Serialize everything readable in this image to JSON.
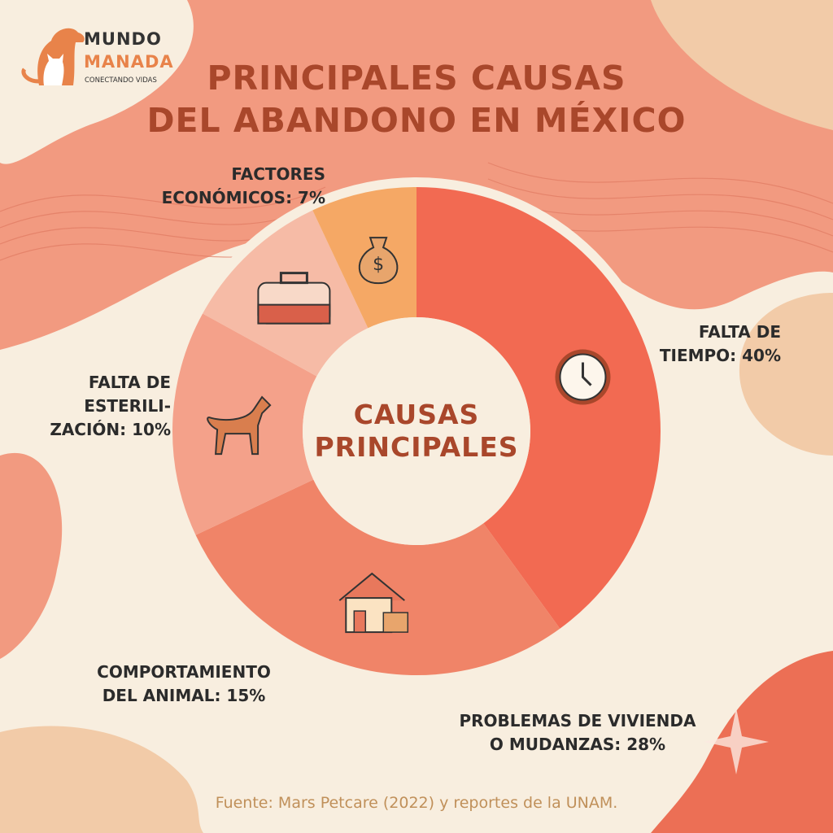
{
  "logo": {
    "line1": "MUNDO",
    "line2": "MANADA",
    "tagline": "CONECTANDO VIDAS"
  },
  "title_line1": "PRINCIPALES CAUSAS",
  "title_line2": "DEL ABANDONO EN MÉXICO",
  "center_line1": "CAUSAS",
  "center_line2": "PRINCIPALES",
  "source": "Fuente: Mars Petcare (2022) y reportes de la UNAM.",
  "chart_data": {
    "type": "pie",
    "variant": "donut",
    "title": "PRINCIPALES CAUSAS DEL ABANDONO EN MÉXICO",
    "categories": [
      "Falta de tiempo",
      "Problemas de vivienda o mudanzas",
      "Comportamiento del animal",
      "Falta de esterilización",
      "Factores económicos"
    ],
    "values": [
      40,
      28,
      15,
      10,
      7
    ],
    "unit": "%",
    "colors": [
      "#F26A52",
      "#F08468",
      "#F4A18A",
      "#F6BBA6",
      "#F5A865"
    ],
    "icons": [
      "clock-icon",
      "house-icon",
      "barking-dog-icon",
      "pet-carrier-icon",
      "money-bag-icon"
    ],
    "labels": [
      {
        "line1": "FALTA DE",
        "line2": "TIEMPO: 40%"
      },
      {
        "line1": "PROBLEMAS DE VIVIENDA",
        "line2": "O MUDANZAS: 28%"
      },
      {
        "line1": "COMPORTAMIENTO",
        "line2": "DEL ANIMAL: 15%"
      },
      {
        "line1": "FALTA DE",
        "line2": "ESTERILI-",
        "line3": "ZACIÓN: 10%"
      },
      {
        "line1": "FACTORES",
        "line2": "ECONÓMICOS: 7%"
      }
    ]
  },
  "colors": {
    "background": "#F8EEDF",
    "blob": "#F29A80",
    "title": "#A9472B"
  }
}
